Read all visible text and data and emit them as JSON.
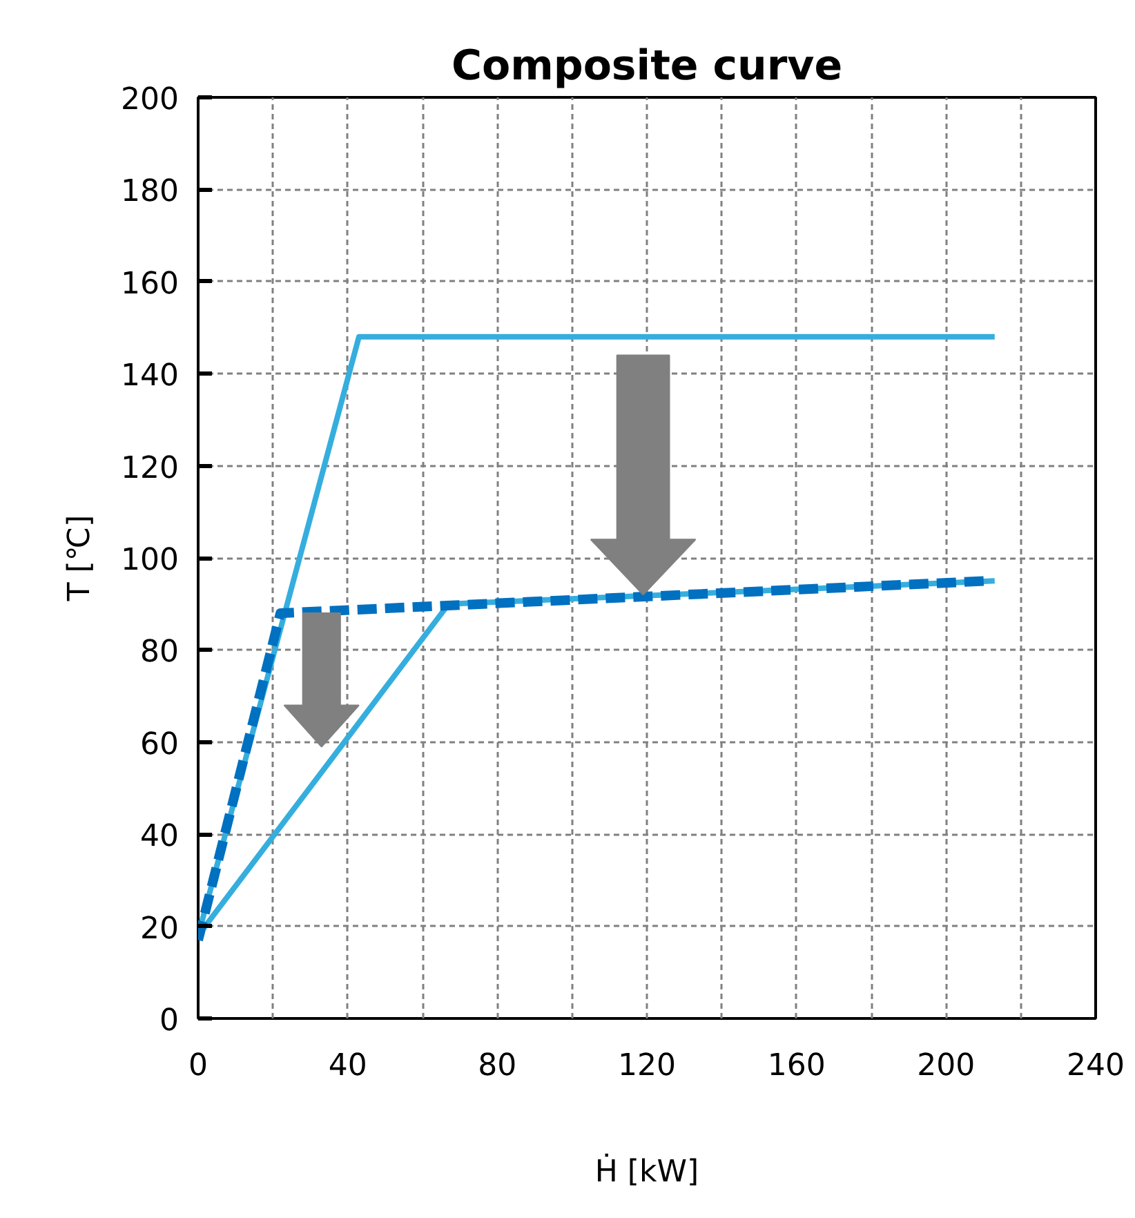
{
  "chart_data": {
    "type": "line",
    "title": "Composite curve",
    "xlabel": "Ḣ [kW]",
    "ylabel": "T [℃]",
    "series": [
      {
        "color": "#35aede",
        "line_style": "solid",
        "x": [
          0,
          43,
          213
        ],
        "values": [
          18,
          148,
          148
        ]
      },
      {
        "color": "#35aede",
        "line_style": "solid",
        "x": [
          0,
          67,
          213
        ],
        "values": [
          18,
          90,
          95
        ]
      },
      {
        "color": "#0070c0",
        "line_style": "dashed",
        "x": [
          0,
          22,
          211
        ],
        "values": [
          17,
          88,
          95
        ]
      }
    ],
    "xlim": [
      0,
      240
    ],
    "ylim": [
      0,
      200
    ],
    "xticks": [
      0,
      {
        "value": 20,
        "label": null
      },
      40,
      {
        "value": 60,
        "label": null
      },
      80,
      {
        "value": 100,
        "label": null
      },
      120,
      {
        "value": 140,
        "label": null
      },
      160,
      {
        "value": 180,
        "label": null
      },
      200,
      {
        "value": 220,
        "label": null
      },
      240
    ],
    "yticks": [
      0,
      20,
      40,
      60,
      80,
      100,
      120,
      140,
      160,
      180,
      200
    ],
    "grid": true,
    "marker": "none"
  }
}
